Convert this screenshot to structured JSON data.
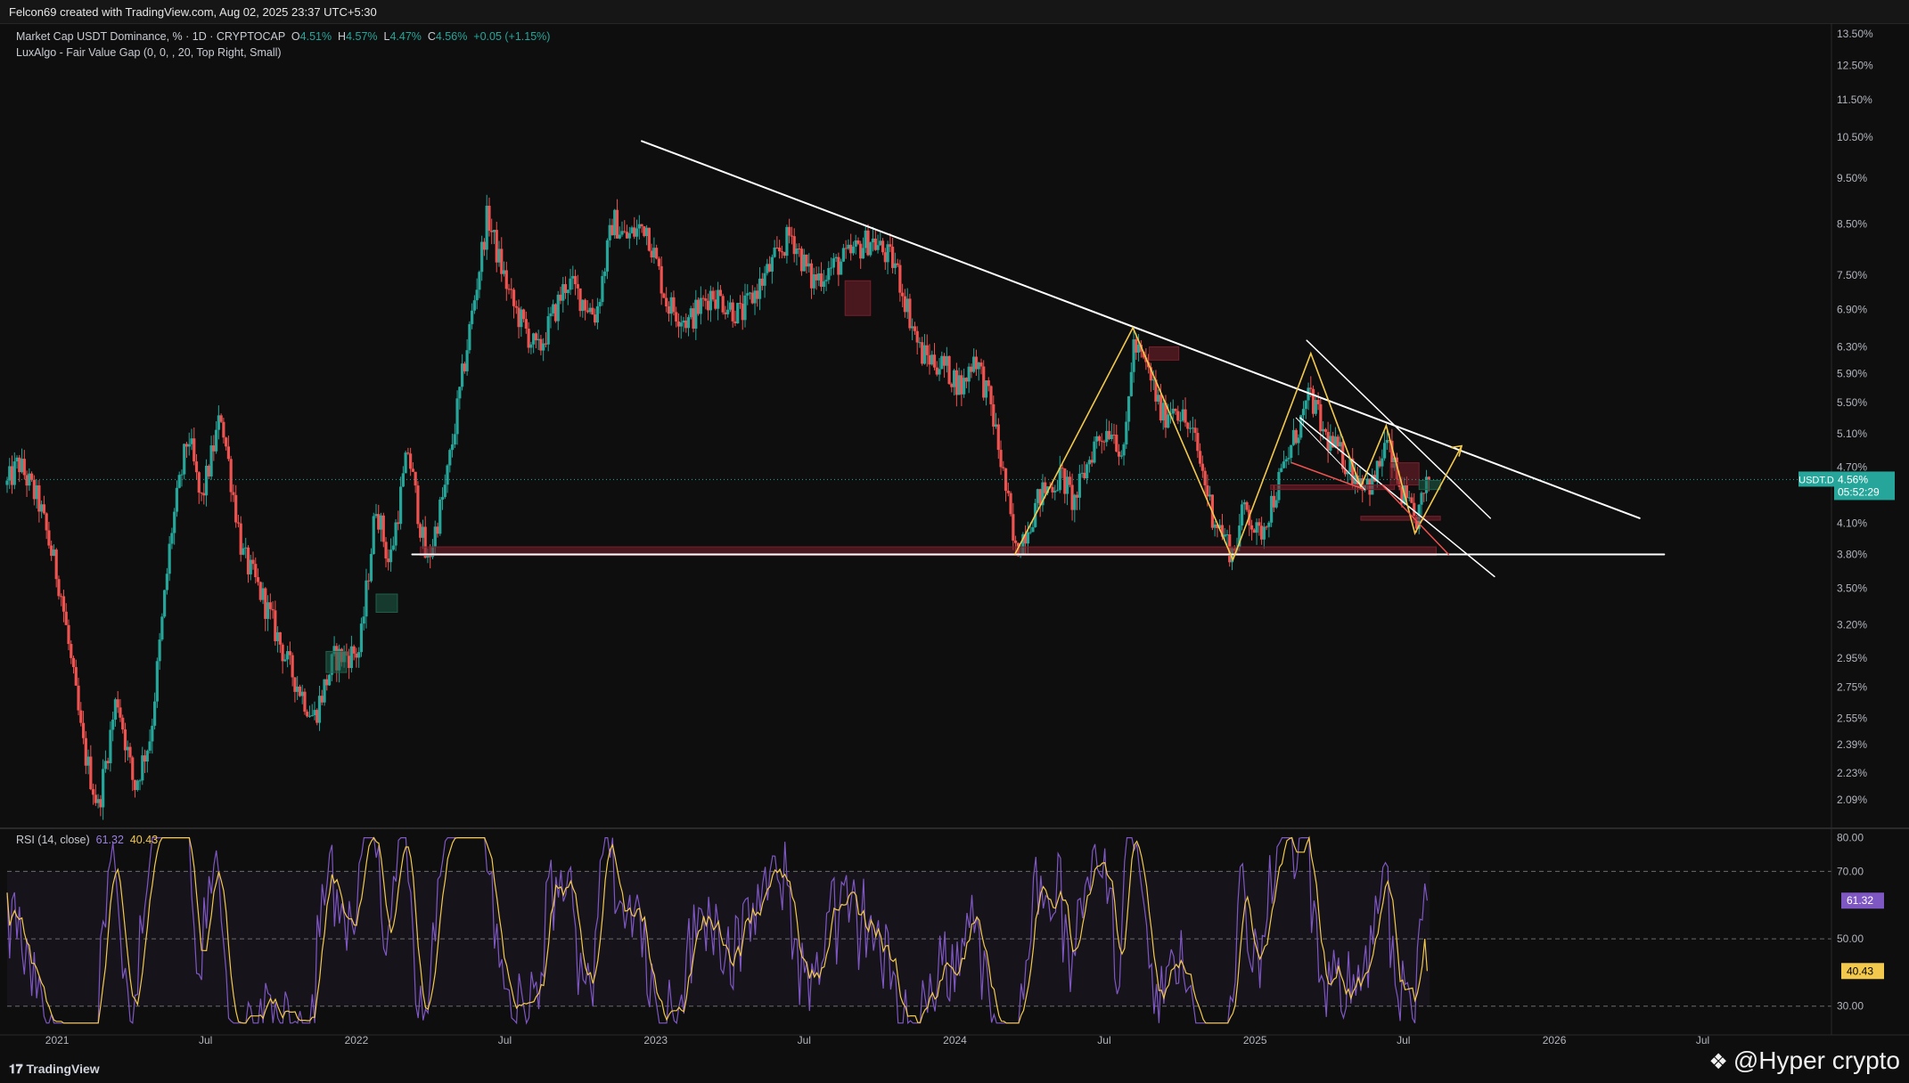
{
  "header": {
    "attribution": "Felcon69 created with TradingView.com, Aug 02, 2025 23:37 UTC+5:30"
  },
  "legend": {
    "symbol": "Market Cap USDT Dominance, % · 1D · CRYPTOCAP",
    "open_label": "O",
    "open": "4.51%",
    "high_label": "H",
    "high": "4.57%",
    "low_label": "L",
    "low": "4.47%",
    "close_label": "C",
    "close": "4.56%",
    "change": "+0.05 (+1.15%)",
    "indicator": "LuxAlgo - Fair Value Gap (0, 0, , 20, Top Right, Small)"
  },
  "rsi_legend": {
    "name": "RSI (14, close)",
    "rsi": "61.32",
    "ma": "40.43"
  },
  "badges": {
    "symbol": "USDT.D",
    "price": "4.56%",
    "countdown": "05:52:29",
    "rsi": "61.32",
    "rsi_ma": "40.43"
  },
  "footer": {
    "brand": "TradingView",
    "watermark": "@Hyper  crypto"
  },
  "colors": {
    "background": "#0e0e0e",
    "up": "#26a69a",
    "down": "#ef5350",
    "trendline": "#ffffff",
    "pattern": "#f2c94c",
    "fvg_red": "#7a1f2b",
    "fvg_green": "#1f5f4a",
    "rsi": "#7e57c2",
    "rsi_ma": "#f2c94c"
  },
  "chart_data": [
    {
      "type": "candlestick",
      "title": "Market Cap USDT Dominance, % · 1D · CRYPTOCAP",
      "scale": "log",
      "ylim": [
        1.95,
        13.8
      ],
      "y_ticks": [
        13.5,
        12.5,
        11.5,
        10.5,
        9.5,
        8.5,
        7.5,
        6.9,
        6.3,
        5.9,
        5.5,
        5.1,
        4.7,
        4.1,
        3.8,
        3.5,
        3.2,
        2.95,
        2.75,
        2.55,
        2.39,
        2.23,
        2.09
      ],
      "y_tick_labels": [
        "13.50%",
        "12.50%",
        "11.50%",
        "10.50%",
        "9.50%",
        "8.50%",
        "7.50%",
        "6.90%",
        "6.30%",
        "5.90%",
        "5.50%",
        "5.10%",
        "4.70%",
        "4.10%",
        "3.80%",
        "3.50%",
        "3.20%",
        "2.95%",
        "2.75%",
        "2.55%",
        "2.39%",
        "2.23%",
        "2.09%"
      ],
      "x_ticks": [
        "2021-01-01",
        "2021-07-01",
        "2022-01-01",
        "2022-07-01",
        "2023-01-01",
        "2023-07-01",
        "2024-01-01",
        "2024-07-01",
        "2025-01-01",
        "2025-07-01",
        "2026-01-01",
        "2026-07-01"
      ],
      "x_tick_labels": [
        "2021",
        "Jul",
        "2022",
        "Jul",
        "2023",
        "Jul",
        "2024",
        "Jul",
        "2025",
        "Jul",
        "2026",
        "Jul"
      ],
      "xlim": [
        "2020-11-01",
        "2026-12-05"
      ],
      "grid": false,
      "last_value": 4.56,
      "swing_points": [
        {
          "date": "2020-11-01",
          "value": 4.5
        },
        {
          "date": "2020-11-15",
          "value": 4.75
        },
        {
          "date": "2020-12-10",
          "value": 4.3
        },
        {
          "date": "2021-01-05",
          "value": 3.5
        },
        {
          "date": "2021-02-01",
          "value": 2.4
        },
        {
          "date": "2021-02-20",
          "value": 2.05
        },
        {
          "date": "2021-03-15",
          "value": 2.7
        },
        {
          "date": "2021-04-05",
          "value": 2.15
        },
        {
          "date": "2021-04-25",
          "value": 2.45
        },
        {
          "date": "2021-05-20",
          "value": 4.0
        },
        {
          "date": "2021-06-10",
          "value": 5.1
        },
        {
          "date": "2021-06-25",
          "value": 4.3
        },
        {
          "date": "2021-07-20",
          "value": 5.35
        },
        {
          "date": "2021-08-15",
          "value": 3.8
        },
        {
          "date": "2021-09-10",
          "value": 3.4
        },
        {
          "date": "2021-10-10",
          "value": 2.9
        },
        {
          "date": "2021-11-10",
          "value": 2.55
        },
        {
          "date": "2021-12-05",
          "value": 2.95
        },
        {
          "date": "2022-01-05",
          "value": 3.0
        },
        {
          "date": "2022-01-25",
          "value": 4.3
        },
        {
          "date": "2022-02-10",
          "value": 3.7
        },
        {
          "date": "2022-03-05",
          "value": 4.9
        },
        {
          "date": "2022-03-28",
          "value": 3.7
        },
        {
          "date": "2022-04-20",
          "value": 4.5
        },
        {
          "date": "2022-05-12",
          "value": 6.0
        },
        {
          "date": "2022-06-10",
          "value": 8.7
        },
        {
          "date": "2022-06-20",
          "value": 8.0
        },
        {
          "date": "2022-07-10",
          "value": 7.0
        },
        {
          "date": "2022-08-10",
          "value": 6.2
        },
        {
          "date": "2022-09-15",
          "value": 7.4
        },
        {
          "date": "2022-10-20",
          "value": 6.8
        },
        {
          "date": "2022-11-10",
          "value": 8.6
        },
        {
          "date": "2022-11-25",
          "value": 8.2
        },
        {
          "date": "2022-12-20",
          "value": 8.5
        },
        {
          "date": "2023-01-15",
          "value": 7.0
        },
        {
          "date": "2023-02-10",
          "value": 6.7
        },
        {
          "date": "2023-03-10",
          "value": 7.2
        },
        {
          "date": "2023-04-15",
          "value": 6.8
        },
        {
          "date": "2023-06-15",
          "value": 8.3
        },
        {
          "date": "2023-07-10",
          "value": 7.4
        },
        {
          "date": "2023-08-20",
          "value": 7.8
        },
        {
          "date": "2023-09-20",
          "value": 8.2
        },
        {
          "date": "2023-10-20",
          "value": 7.7
        },
        {
          "date": "2023-11-20",
          "value": 6.2
        },
        {
          "date": "2023-12-20",
          "value": 6.0
        },
        {
          "date": "2024-01-10",
          "value": 5.7
        },
        {
          "date": "2024-01-25",
          "value": 6.2
        },
        {
          "date": "2024-02-15",
          "value": 5.4
        },
        {
          "date": "2024-03-05",
          "value": 4.35
        },
        {
          "date": "2024-03-14",
          "value": 3.8
        },
        {
          "date": "2024-04-15",
          "value": 4.4
        },
        {
          "date": "2024-05-10",
          "value": 4.6
        },
        {
          "date": "2024-05-25",
          "value": 4.3
        },
        {
          "date": "2024-06-20",
          "value": 5.0
        },
        {
          "date": "2024-07-10",
          "value": 5.2
        },
        {
          "date": "2024-07-25",
          "value": 4.8
        },
        {
          "date": "2024-08-05",
          "value": 6.35
        },
        {
          "date": "2024-08-25",
          "value": 5.9
        },
        {
          "date": "2024-09-10",
          "value": 5.3
        },
        {
          "date": "2024-09-25",
          "value": 5.5
        },
        {
          "date": "2024-10-20",
          "value": 5.0
        },
        {
          "date": "2024-11-10",
          "value": 4.2
        },
        {
          "date": "2024-12-05",
          "value": 3.8
        },
        {
          "date": "2024-12-20",
          "value": 4.3
        },
        {
          "date": "2025-01-05",
          "value": 3.95
        },
        {
          "date": "2025-01-25",
          "value": 4.4
        },
        {
          "date": "2025-02-20",
          "value": 5.1
        },
        {
          "date": "2025-03-10",
          "value": 5.6
        },
        {
          "date": "2025-03-25",
          "value": 5.1
        },
        {
          "date": "2025-04-10",
          "value": 4.9
        },
        {
          "date": "2025-05-05",
          "value": 4.6
        },
        {
          "date": "2025-05-25",
          "value": 4.5
        },
        {
          "date": "2025-06-10",
          "value": 5.0
        },
        {
          "date": "2025-06-25",
          "value": 4.5
        },
        {
          "date": "2025-07-15",
          "value": 4.1
        },
        {
          "date": "2025-08-02",
          "value": 4.56
        }
      ]
    },
    {
      "type": "line",
      "title": "RSI (14, close)",
      "ylim": [
        22,
        82
      ],
      "y_ticks": [
        80,
        70,
        50,
        30
      ],
      "y_tick_labels": [
        "80.00",
        "70.00",
        "50.00",
        "30.00"
      ],
      "bands": [
        30,
        50,
        70
      ],
      "xlim": [
        "2020-11-01",
        "2026-12-05"
      ],
      "series": [
        {
          "name": "RSI",
          "last": 61.32
        },
        {
          "name": "RSI MA",
          "last": 40.43
        }
      ]
    }
  ]
}
